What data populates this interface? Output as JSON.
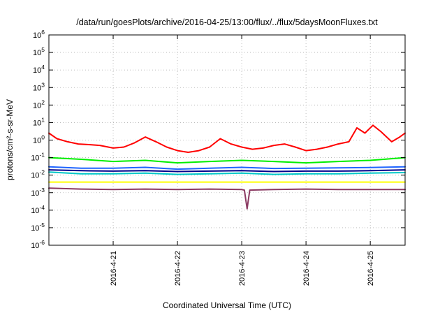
{
  "chart_data": {
    "type": "line",
    "title": "/data/run/goesPlots/archive/2016-04-25/13:00/flux/../flux/5daysMoonFluxes.txt",
    "xlabel": "Coordinated Universal Time (UTC)",
    "ylabel": "protons/cm²-s-sr-MeV",
    "y_scale": "log",
    "ylim": [
      1e-06,
      1000000.0
    ],
    "xlim": [
      "2016-04-20T00:00",
      "2016-04-25T13:00"
    ],
    "grid": true,
    "x_ticks": [
      {
        "at": "2016-04-21T00:00",
        "label": "2016-4-21"
      },
      {
        "at": "2016-04-22T00:00",
        "label": "2016-4-22"
      },
      {
        "at": "2016-04-23T00:00",
        "label": "2016-4-23"
      },
      {
        "at": "2016-04-24T00:00",
        "label": "2016-4-24"
      },
      {
        "at": "2016-04-25T00:00",
        "label": "2016-4-25"
      }
    ],
    "y_ticks": [
      {
        "exp": "6",
        "label": "10"
      },
      {
        "exp": "5",
        "label": "10"
      },
      {
        "exp": "4",
        "label": "10"
      },
      {
        "exp": "3",
        "label": "10"
      },
      {
        "exp": "2",
        "label": "10"
      },
      {
        "exp": "1",
        "label": "10"
      },
      {
        "exp": "0",
        "label": "10"
      },
      {
        "exp": "-1",
        "label": "10"
      },
      {
        "exp": "-2",
        "label": "10"
      },
      {
        "exp": "-3",
        "label": "10"
      },
      {
        "exp": "-4",
        "label": "10"
      },
      {
        "exp": "-5",
        "label": "10"
      },
      {
        "exp": "-6",
        "label": "10"
      }
    ],
    "series": [
      {
        "color": "#ff0000",
        "x": [
          "2016-04-20T00:00",
          "2016-04-20T03:00",
          "2016-04-20T07:00",
          "2016-04-20T11:00",
          "2016-04-20T15:00",
          "2016-04-20T19:00",
          "2016-04-21T00:00",
          "2016-04-21T04:00",
          "2016-04-21T08:00",
          "2016-04-21T12:00",
          "2016-04-21T16:00",
          "2016-04-21T20:00",
          "2016-04-22T00:00",
          "2016-04-22T04:00",
          "2016-04-22T08:00",
          "2016-04-22T12:00",
          "2016-04-22T16:00",
          "2016-04-22T20:00",
          "2016-04-23T00:00",
          "2016-04-23T04:00",
          "2016-04-23T08:00",
          "2016-04-23T12:00",
          "2016-04-23T16:00",
          "2016-04-23T20:00",
          "2016-04-24T00:00",
          "2016-04-24T04:00",
          "2016-04-24T08:00",
          "2016-04-24T12:00",
          "2016-04-24T16:00",
          "2016-04-24T19:00",
          "2016-04-24T22:00",
          "2016-04-25T01:00",
          "2016-04-25T04:00",
          "2016-04-25T08:00",
          "2016-04-25T11:00",
          "2016-04-25T13:00"
        ],
        "values": [
          2.5,
          1.2,
          0.8,
          0.6,
          0.55,
          0.5,
          0.35,
          0.4,
          0.7,
          1.5,
          0.8,
          0.4,
          0.25,
          0.2,
          0.25,
          0.4,
          1.2,
          0.6,
          0.4,
          0.3,
          0.35,
          0.5,
          0.6,
          0.4,
          0.25,
          0.3,
          0.4,
          0.6,
          0.8,
          5.0,
          2.5,
          7.0,
          3.0,
          0.8,
          1.5,
          2.5
        ]
      },
      {
        "color": "#00ee00",
        "x": [
          "2016-04-20T00:00",
          "2016-04-20T12:00",
          "2016-04-21T00:00",
          "2016-04-21T12:00",
          "2016-04-22T00:00",
          "2016-04-22T12:00",
          "2016-04-23T00:00",
          "2016-04-23T12:00",
          "2016-04-24T00:00",
          "2016-04-24T12:00",
          "2016-04-25T00:00",
          "2016-04-25T13:00"
        ],
        "values": [
          0.1,
          0.08,
          0.06,
          0.07,
          0.05,
          0.06,
          0.07,
          0.06,
          0.05,
          0.06,
          0.07,
          0.1
        ]
      },
      {
        "color": "#00c8c8",
        "x": [
          "2016-04-20T00:00",
          "2016-04-20T12:00",
          "2016-04-21T00:00",
          "2016-04-21T12:00",
          "2016-04-22T00:00",
          "2016-04-22T12:00",
          "2016-04-23T00:00",
          "2016-04-23T12:00",
          "2016-04-24T00:00",
          "2016-04-24T12:00",
          "2016-04-25T00:00",
          "2016-04-25T13:00"
        ],
        "values": [
          0.015,
          0.012,
          0.012,
          0.013,
          0.011,
          0.012,
          0.013,
          0.011,
          0.012,
          0.012,
          0.013,
          0.014
        ]
      },
      {
        "color": "#1e64ff",
        "x": [
          "2016-04-20T00:00",
          "2016-04-20T12:00",
          "2016-04-21T00:00",
          "2016-04-21T12:00",
          "2016-04-22T00:00",
          "2016-04-22T12:00",
          "2016-04-23T00:00",
          "2016-04-23T12:00",
          "2016-04-24T00:00",
          "2016-04-24T12:00",
          "2016-04-25T00:00",
          "2016-04-25T13:00"
        ],
        "values": [
          0.03,
          0.025,
          0.025,
          0.028,
          0.022,
          0.025,
          0.028,
          0.024,
          0.025,
          0.026,
          0.027,
          0.03
        ]
      },
      {
        "color": "#00008b",
        "x": [
          "2016-04-20T00:00",
          "2016-04-20T12:00",
          "2016-04-21T00:00",
          "2016-04-21T12:00",
          "2016-04-22T00:00",
          "2016-04-22T12:00",
          "2016-04-23T00:00",
          "2016-04-23T12:00",
          "2016-04-24T00:00",
          "2016-04-24T12:00",
          "2016-04-25T00:00",
          "2016-04-25T13:00"
        ],
        "values": [
          0.02,
          0.018,
          0.017,
          0.018,
          0.016,
          0.017,
          0.018,
          0.016,
          0.017,
          0.017,
          0.018,
          0.02
        ]
      },
      {
        "color": "#ffff00",
        "x": [
          "2016-04-20T00:00",
          "2016-04-21T00:00",
          "2016-04-22T00:00",
          "2016-04-23T00:00",
          "2016-04-24T00:00",
          "2016-04-25T00:00",
          "2016-04-25T13:00"
        ],
        "values": [
          0.004,
          0.004,
          0.004,
          0.004,
          0.004,
          0.004,
          0.004
        ]
      },
      {
        "color": "#8b3a62",
        "x": [
          "2016-04-20T00:00",
          "2016-04-20T12:00",
          "2016-04-21T00:00",
          "2016-04-21T12:00",
          "2016-04-22T00:00",
          "2016-04-22T12:00",
          "2016-04-23T00:00",
          "2016-04-23T01:00",
          "2016-04-23T02:00",
          "2016-04-23T03:00",
          "2016-04-23T12:00",
          "2016-04-24T00:00",
          "2016-04-24T12:00",
          "2016-04-25T00:00",
          "2016-04-25T13:00"
        ],
        "values": [
          0.0018,
          0.0016,
          0.0015,
          0.0016,
          0.0015,
          0.0016,
          0.0015,
          0.0014,
          0.00012,
          0.0014,
          0.0015,
          0.0016,
          0.0015,
          0.0015,
          0.0015
        ]
      }
    ]
  }
}
